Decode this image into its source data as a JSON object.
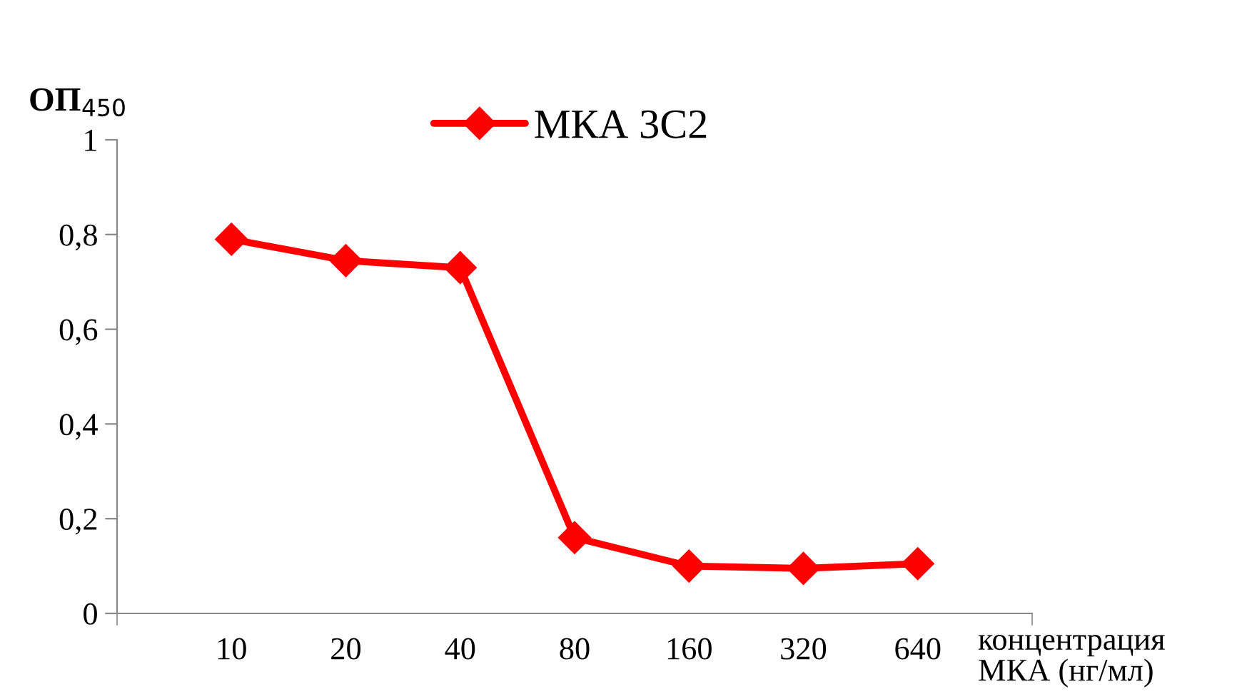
{
  "chart_data": {
    "type": "line",
    "ylabel": "ОП$_{450}$",
    "xlabel": "концентрация\nМКА (нг/мл)",
    "categories": [
      "10",
      "20",
      "40",
      "80",
      "160",
      "320",
      "640"
    ],
    "series": [
      {
        "name": "МКА 3С2",
        "color": "#ff0000",
        "values": [
          0.79,
          0.745,
          0.73,
          0.16,
          0.1,
          0.095,
          0.105
        ]
      }
    ],
    "ylim": [
      0,
      1
    ],
    "yticks": [
      0,
      {
        "value": 0.2,
        "label": "0,2"
      },
      {
        "value": 0.4,
        "label": "0,4"
      },
      {
        "value": 0.6,
        "label": "0,6"
      },
      {
        "value": 0.8,
        "label": "0,8"
      },
      1
    ],
    "marker": "diamond",
    "line_style": "solid",
    "grid": false,
    "legend": "top"
  }
}
